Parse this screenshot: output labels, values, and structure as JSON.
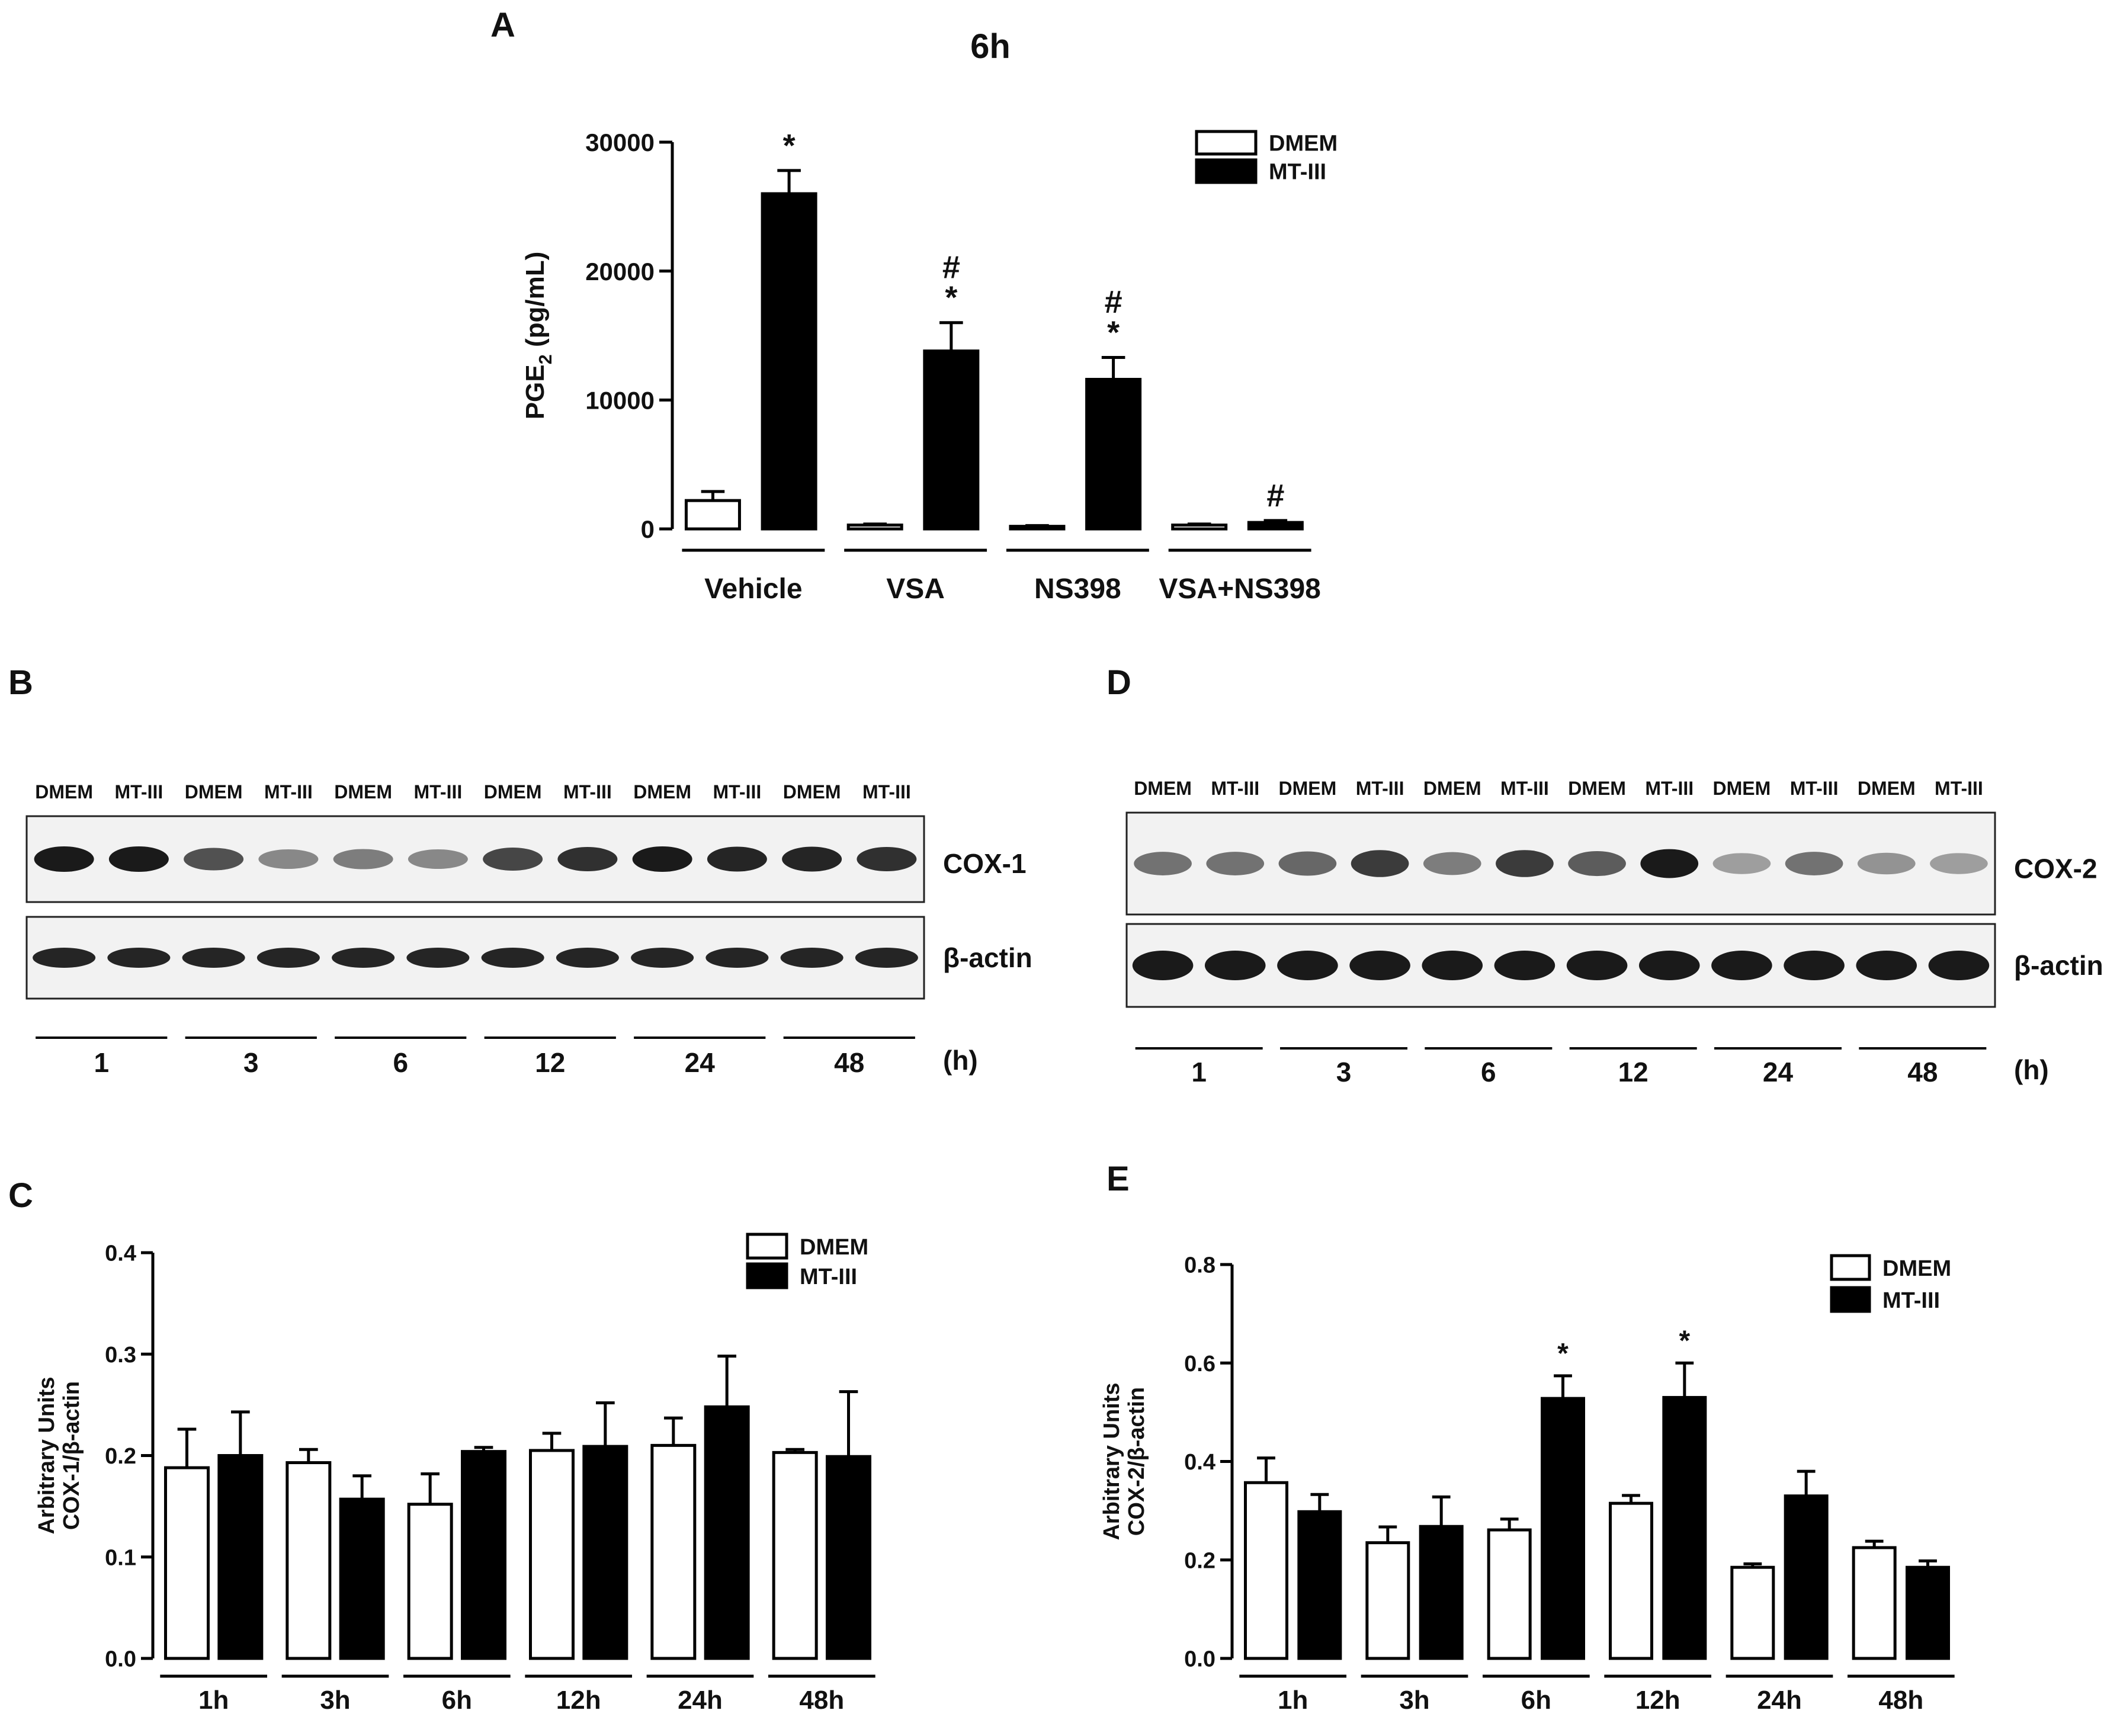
{
  "panels": {
    "A": "A",
    "B": "B",
    "C": "C",
    "D": "D",
    "E": "E"
  },
  "colors": {
    "dmem_fill": "#ffffff",
    "mtiii_fill": "#000000",
    "stroke": "#000000"
  },
  "chart_data": [
    {
      "id": "A",
      "type": "bar",
      "title": "6h",
      "ylabel_main": "PGE",
      "ylabel_sub": "2",
      "ylabel_rest": " (pg/mL)",
      "ylim": [
        0,
        30000
      ],
      "yticks": [
        "0",
        "10000",
        "20000",
        "30000"
      ],
      "ytick_values": [
        0,
        10000,
        20000,
        30000
      ],
      "categories": [
        "Vehicle",
        "VSA",
        "NS398",
        "VSA+NS398"
      ],
      "series": [
        {
          "name": "DMEM",
          "values": [
            2200,
            300,
            200,
            300
          ],
          "errors": [
            700,
            80,
            60,
            80
          ]
        },
        {
          "name": "MT-III",
          "values": [
            26000,
            13800,
            11600,
            500
          ],
          "errors": [
            1800,
            2200,
            1700,
            150
          ]
        }
      ],
      "annotations": [
        {
          "category": 0,
          "series": 1,
          "lines": [
            "*"
          ]
        },
        {
          "category": 1,
          "series": 1,
          "lines": [
            "#",
            "*"
          ]
        },
        {
          "category": 2,
          "series": 1,
          "lines": [
            "#",
            "*"
          ]
        },
        {
          "category": 3,
          "series": 1,
          "lines": [
            "#"
          ]
        }
      ],
      "legend": [
        "DMEM",
        "MT-III"
      ],
      "legend_position": "top-right"
    },
    {
      "id": "C",
      "type": "bar",
      "title": "",
      "ylabel_line1": "Arbitrary Units",
      "ylabel_line2": "COX-1/β-actin",
      "ylim": [
        0,
        0.4
      ],
      "yticks": [
        "0.0",
        "0.1",
        "0.2",
        "0.3",
        "0.4"
      ],
      "ytick_values": [
        0,
        0.1,
        0.2,
        0.3,
        0.4
      ],
      "categories": [
        "1h",
        "3h",
        "6h",
        "12h",
        "24h",
        "48h"
      ],
      "series": [
        {
          "name": "DMEM",
          "values": [
            0.188,
            0.193,
            0.152,
            0.205,
            0.21,
            0.203
          ],
          "errors": [
            0.038,
            0.013,
            0.03,
            0.017,
            0.027,
            0.003
          ]
        },
        {
          "name": "MT-III",
          "values": [
            0.2,
            0.157,
            0.204,
            0.209,
            0.248,
            0.199
          ],
          "errors": [
            0.043,
            0.023,
            0.004,
            0.043,
            0.05,
            0.064
          ]
        }
      ],
      "annotations": [],
      "legend": [
        "DMEM",
        "MT-III"
      ],
      "legend_position": "top-right"
    },
    {
      "id": "E",
      "type": "bar",
      "title": "",
      "ylabel_line1": "Arbitrary Units",
      "ylabel_line2": "COX-2/β-actin",
      "ylim": [
        0,
        0.8
      ],
      "yticks": [
        "0.0",
        "0.2",
        "0.4",
        "0.6",
        "0.8"
      ],
      "ytick_values": [
        0,
        0.2,
        0.4,
        0.6,
        0.8
      ],
      "categories": [
        "1h",
        "3h",
        "6h",
        "12h",
        "24h",
        "48h"
      ],
      "series": [
        {
          "name": "DMEM",
          "values": [
            0.357,
            0.235,
            0.261,
            0.315,
            0.185,
            0.225
          ],
          "errors": [
            0.05,
            0.032,
            0.022,
            0.016,
            0.007,
            0.013
          ]
        },
        {
          "name": "MT-III",
          "values": [
            0.298,
            0.268,
            0.528,
            0.53,
            0.33,
            0.185
          ],
          "errors": [
            0.035,
            0.06,
            0.046,
            0.07,
            0.05,
            0.013
          ]
        }
      ],
      "annotations": [
        {
          "category": 2,
          "series": 1,
          "lines": [
            "*"
          ]
        },
        {
          "category": 3,
          "series": 1,
          "lines": [
            "*"
          ]
        }
      ],
      "legend": [
        "DMEM",
        "MT-III"
      ],
      "legend_position": "top-right"
    }
  ],
  "blot_B": {
    "lane_labels": [
      "DMEM",
      "MT-III",
      "DMEM",
      "MT-III",
      "DMEM",
      "MT-III",
      "DMEM",
      "MT-III",
      "DMEM",
      "MT-III",
      "DMEM",
      "MT-III"
    ],
    "protein_label": "COX-1",
    "control_label": "β-actin",
    "time_labels": [
      "1",
      "3",
      "6",
      "12",
      "24",
      "48"
    ],
    "unit_label": "(h)",
    "band_intensity": [
      0.95,
      0.95,
      0.7,
      0.45,
      0.5,
      0.45,
      0.75,
      0.85,
      0.95,
      0.9,
      0.9,
      0.85
    ],
    "control_intensity": [
      0.9,
      0.9,
      0.9,
      0.9,
      0.9,
      0.9,
      0.9,
      0.9,
      0.9,
      0.9,
      0.9,
      0.9
    ]
  },
  "blot_D": {
    "lane_labels": [
      "DMEM",
      "MT-III",
      "DMEM",
      "MT-III",
      "DMEM",
      "MT-III",
      "DMEM",
      "MT-III",
      "DMEM",
      "MT-III",
      "DMEM",
      "MT-III"
    ],
    "protein_label": "COX-2",
    "control_label": "β-actin",
    "time_labels": [
      "1",
      "3",
      "6",
      "12",
      "24",
      "48"
    ],
    "unit_label": "(h)",
    "band_intensity": [
      0.55,
      0.55,
      0.6,
      0.8,
      0.5,
      0.8,
      0.65,
      0.95,
      0.35,
      0.55,
      0.4,
      0.35
    ],
    "control_intensity": [
      0.95,
      0.95,
      0.95,
      0.95,
      0.95,
      0.95,
      0.95,
      0.95,
      0.95,
      0.95,
      0.95,
      0.95
    ]
  }
}
